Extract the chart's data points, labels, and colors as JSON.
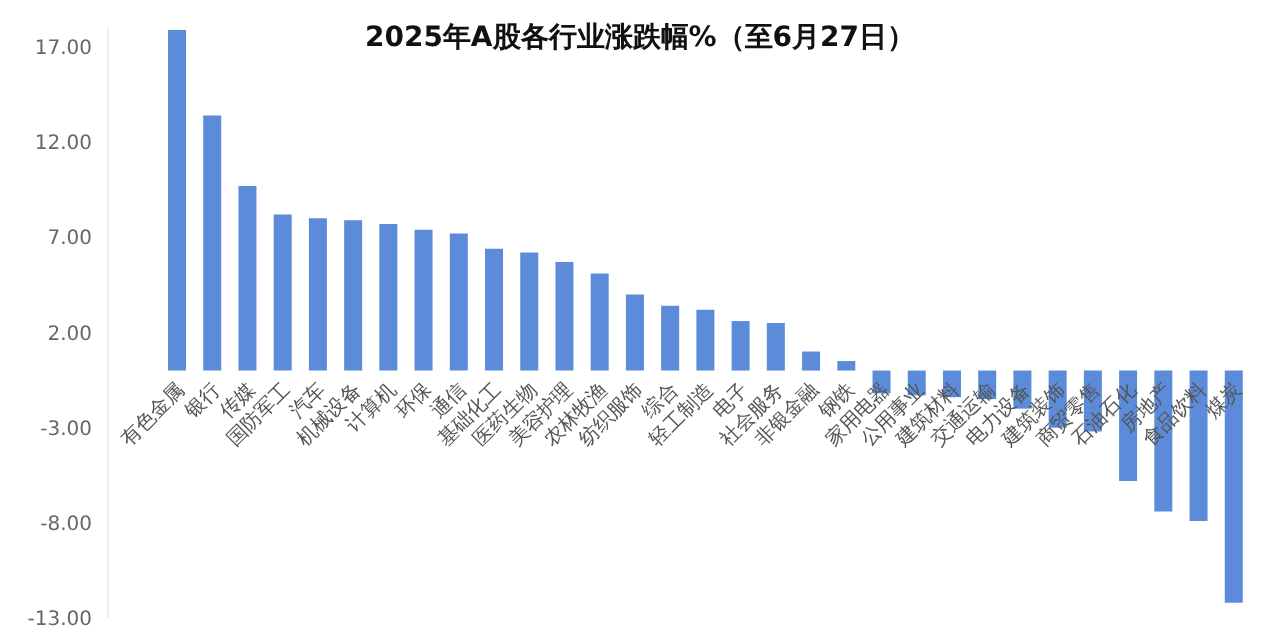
{
  "chart_data": {
    "type": "bar",
    "title": "2025年A股各行业涨跌幅%（至6月27日）",
    "categories": [
      "有色金属",
      "银行",
      "传媒",
      "国防军工",
      "汽车",
      "机械设备",
      "计算机",
      "环保",
      "通信",
      "基础化工",
      "医药生物",
      "美容护理",
      "农林牧渔",
      "纺织服饰",
      "综合",
      "轻工制造",
      "电子",
      "社会服务",
      "非银金融",
      "钢铁",
      "家用电器",
      "公用事业",
      "建筑材料",
      "交通运输",
      "电力设备",
      "建筑装饰",
      "商贸零售",
      "石油石化",
      "房地产",
      "食品饮料",
      "煤炭"
    ],
    "values": [
      17.9,
      13.4,
      9.7,
      8.2,
      8.0,
      7.9,
      7.7,
      7.4,
      7.2,
      6.4,
      6.2,
      5.7,
      5.1,
      4.0,
      3.4,
      3.2,
      2.6,
      2.5,
      1.0,
      0.5,
      -1.2,
      -1.3,
      -1.4,
      -1.5,
      -2.0,
      -3.0,
      -3.2,
      -5.8,
      -7.4,
      -7.9,
      -12.2
    ],
    "color": "#5b8bd9",
    "ylim": [
      -13,
      18
    ],
    "yticks": [
      {
        "value": -13,
        "label": "-13.00"
      },
      {
        "value": -8,
        "label": "-8.00"
      },
      {
        "value": -3,
        "label": "-3.00"
      },
      {
        "value": 2,
        "label": "2.00"
      },
      {
        "value": 7,
        "label": "7.00"
      },
      {
        "value": 12,
        "label": "12.00"
      },
      {
        "value": 17,
        "label": "17.00"
      }
    ],
    "grid": false,
    "legend": false
  }
}
